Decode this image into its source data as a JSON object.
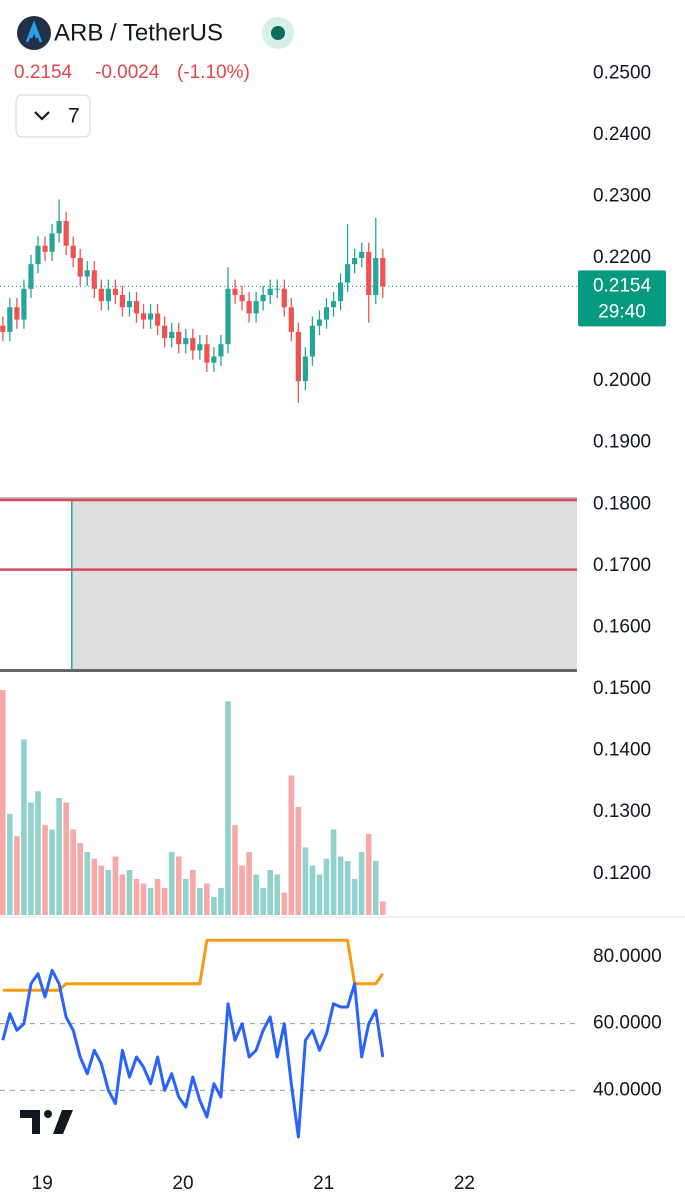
{
  "header": {
    "symbol": "ARB / TetherUS",
    "price": "0.2154",
    "change": "-0.0024",
    "change_pct": "(-1.10%)",
    "interval": "7"
  },
  "chart_data": {
    "type": "candlestick",
    "up_color": "#26a69a",
    "down_color": "#ef5350",
    "xlim": [
      18.7,
      22.8
    ],
    "xticks": [
      19,
      20,
      21,
      22
    ],
    "ylim": [
      0.1133,
      0.2619
    ],
    "yticks": [
      {
        "value": 0.25,
        "label": "0.2500"
      },
      {
        "value": 0.24,
        "label": "0.2400"
      },
      {
        "value": 0.23,
        "label": "0.2300"
      },
      {
        "value": 0.22,
        "label": "0.2200"
      },
      {
        "value": 0.2,
        "label": "0.2000"
      },
      {
        "value": 0.19,
        "label": "0.1900"
      },
      {
        "value": 0.18,
        "label": "0.1800"
      },
      {
        "value": 0.17,
        "label": "0.1700"
      },
      {
        "value": 0.16,
        "label": "0.1600"
      },
      {
        "value": 0.15,
        "label": "0.1500"
      },
      {
        "value": 0.14,
        "label": "0.1400"
      },
      {
        "value": 0.13,
        "label": "0.1300"
      },
      {
        "value": 0.12,
        "label": "0.1200"
      }
    ],
    "countdown": "29:40",
    "x": [
      18.72,
      18.77,
      18.82,
      18.87,
      18.92,
      18.97,
      19.02,
      19.07,
      19.12,
      19.17,
      19.22,
      19.27,
      19.32,
      19.37,
      19.42,
      19.47,
      19.52,
      19.57,
      19.62,
      19.67,
      19.72,
      19.77,
      19.82,
      19.87,
      19.92,
      19.97,
      20.02,
      20.07,
      20.12,
      20.17,
      20.22,
      20.27,
      20.32,
      20.37,
      20.42,
      20.47,
      20.52,
      20.57,
      20.62,
      20.67,
      20.72,
      20.77,
      20.82,
      20.87,
      20.92,
      20.97,
      21.02,
      21.07,
      21.12,
      21.17,
      21.22,
      21.27,
      21.32,
      21.37,
      21.42
    ],
    "open": [
      0.209,
      0.208,
      0.212,
      0.21,
      0.215,
      0.219,
      0.222,
      0.221,
      0.224,
      0.226,
      0.222,
      0.22,
      0.217,
      0.218,
      0.215,
      0.213,
      0.215,
      0.214,
      0.212,
      0.213,
      0.211,
      0.21,
      0.211,
      0.209,
      0.207,
      0.208,
      0.206,
      0.207,
      0.205,
      0.206,
      0.203,
      0.204,
      0.206,
      0.215,
      0.214,
      0.213,
      0.211,
      0.213,
      0.214,
      0.215,
      0.215,
      0.212,
      0.208,
      0.2,
      0.204,
      0.209,
      0.21,
      0.212,
      0.213,
      0.216,
      0.219,
      0.22,
      0.221,
      0.214,
      0.22
    ],
    "high": [
      0.2105,
      0.2135,
      0.2135,
      0.2165,
      0.2205,
      0.2235,
      0.2235,
      0.2255,
      0.2295,
      0.2275,
      0.2235,
      0.2215,
      0.2195,
      0.2195,
      0.2165,
      0.2165,
      0.2165,
      0.2155,
      0.2145,
      0.2145,
      0.2125,
      0.2125,
      0.2125,
      0.2105,
      0.2095,
      0.2095,
      0.2085,
      0.2085,
      0.2075,
      0.2075,
      0.2055,
      0.2075,
      0.2185,
      0.2165,
      0.2155,
      0.2145,
      0.2145,
      0.2155,
      0.2165,
      0.2165,
      0.2165,
      0.2135,
      0.2095,
      0.2055,
      0.2105,
      0.2115,
      0.2135,
      0.2145,
      0.2175,
      0.2255,
      0.2215,
      0.2225,
      0.2225,
      0.2265,
      0.2215
    ],
    "low": [
      0.2065,
      0.2065,
      0.2085,
      0.2085,
      0.2135,
      0.2175,
      0.2195,
      0.2195,
      0.2225,
      0.2205,
      0.2185,
      0.2155,
      0.2155,
      0.2135,
      0.2115,
      0.2115,
      0.2125,
      0.2105,
      0.2105,
      0.2095,
      0.2085,
      0.2085,
      0.2075,
      0.2055,
      0.2055,
      0.2045,
      0.2045,
      0.2035,
      0.2035,
      0.2015,
      0.2015,
      0.2025,
      0.2045,
      0.2125,
      0.2115,
      0.2095,
      0.2095,
      0.2115,
      0.2125,
      0.2135,
      0.2105,
      0.2065,
      0.1965,
      0.1985,
      0.2025,
      0.2075,
      0.2085,
      0.2105,
      0.2115,
      0.2145,
      0.2175,
      0.2185,
      0.2095,
      0.2125,
      0.2135
    ],
    "close": [
      0.208,
      0.212,
      0.21,
      0.215,
      0.219,
      0.222,
      0.221,
      0.224,
      0.226,
      0.222,
      0.22,
      0.217,
      0.218,
      0.215,
      0.213,
      0.215,
      0.214,
      0.212,
      0.213,
      0.211,
      0.21,
      0.211,
      0.209,
      0.207,
      0.208,
      0.206,
      0.207,
      0.205,
      0.206,
      0.203,
      0.204,
      0.206,
      0.215,
      0.214,
      0.213,
      0.211,
      0.213,
      0.214,
      0.215,
      0.215,
      0.212,
      0.208,
      0.2,
      0.204,
      0.209,
      0.21,
      0.212,
      0.213,
      0.216,
      0.219,
      0.22,
      0.221,
      0.214,
      0.22,
      0.2154
    ],
    "box": {
      "x0": 19.21,
      "low": 0.153,
      "high": 0.1807,
      "color": "#dedede",
      "edge_color": "#26a69a"
    },
    "levels": {
      "values": [
        0.1807,
        0.1694
      ],
      "color": "#d9495a"
    },
    "volume_ylim": [
      0,
      100
    ],
    "volume": [
      100,
      45,
      35,
      78,
      50,
      55,
      40,
      38,
      52,
      50,
      38,
      32,
      28,
      25,
      22,
      20,
      26,
      18,
      20,
      16,
      14,
      12,
      16,
      12,
      28,
      26,
      16,
      20,
      12,
      14,
      8,
      12,
      95,
      40,
      22,
      28,
      18,
      12,
      20,
      18,
      10,
      62,
      48,
      30,
      22,
      18,
      25,
      38,
      26,
      24,
      16,
      28,
      36,
      24,
      6
    ],
    "lower": {
      "ylim": [
        20,
        92
      ],
      "yticks": [
        {
          "value": 80,
          "label": "80.0000"
        },
        {
          "value": 60,
          "label": "60.0000"
        },
        {
          "value": 40,
          "label": "40.0000"
        }
      ],
      "grid_values": [
        60,
        40
      ],
      "series": [
        {
          "color": "#2962ff",
          "values": [
            55,
            63,
            58,
            60,
            72,
            75,
            68,
            76,
            72,
            62,
            58,
            50,
            45,
            52,
            48,
            40,
            36,
            52,
            44,
            50,
            47,
            42,
            50,
            40,
            45,
            38,
            35,
            44,
            37,
            32,
            42,
            38,
            66,
            55,
            60,
            50,
            52,
            58,
            62,
            50,
            60,
            42,
            26,
            55,
            58,
            52,
            57,
            66,
            65,
            65,
            72,
            50,
            60,
            64,
            50
          ]
        },
        {
          "color": "#f59d12",
          "values": [
            70,
            70,
            70,
            70,
            70,
            70,
            70,
            70,
            70,
            72,
            72,
            72,
            72,
            72,
            72,
            72,
            72,
            72,
            72,
            72,
            72,
            72,
            72,
            72,
            72,
            72,
            72,
            72,
            72,
            85,
            85,
            85,
            85,
            85,
            85,
            85,
            85,
            85,
            85,
            85,
            85,
            85,
            85,
            85,
            85,
            85,
            85,
            85,
            85,
            85,
            72,
            72,
            72,
            72,
            75
          ]
        }
      ]
    }
  }
}
